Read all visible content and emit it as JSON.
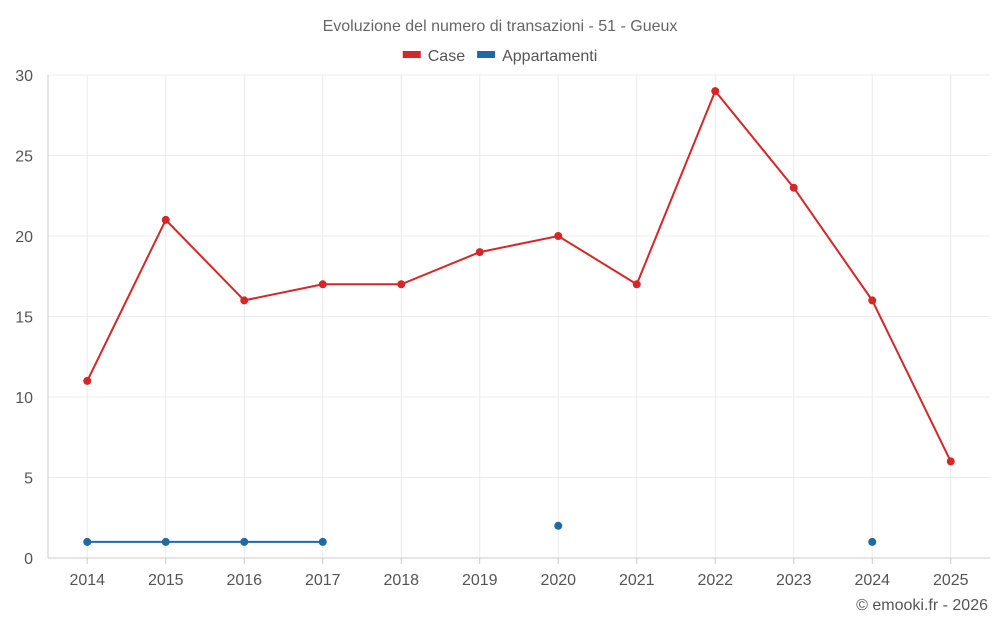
{
  "chart_data": {
    "type": "line",
    "title": "Evoluzione del numero di transazioni - 51 - Gueux",
    "xlabel": "",
    "ylabel": "",
    "categories": [
      "2014",
      "2015",
      "2016",
      "2017",
      "2018",
      "2019",
      "2020",
      "2021",
      "2022",
      "2023",
      "2024",
      "2025"
    ],
    "ylim": [
      0,
      30
    ],
    "yticks": [
      0,
      5,
      10,
      15,
      20,
      25,
      30
    ],
    "grid": true,
    "legend_position": "top-center",
    "series": [
      {
        "name": "Case",
        "color": "#d62728",
        "values": [
          11,
          21,
          16,
          17,
          17,
          19,
          20,
          17,
          29,
          23,
          16,
          6
        ]
      },
      {
        "name": "Appartamenti",
        "color": "#1f6aa5",
        "values": [
          1,
          1,
          1,
          1,
          null,
          null,
          2,
          null,
          null,
          null,
          1,
          null
        ]
      }
    ]
  },
  "credit": "© emooki.fr - 2026"
}
